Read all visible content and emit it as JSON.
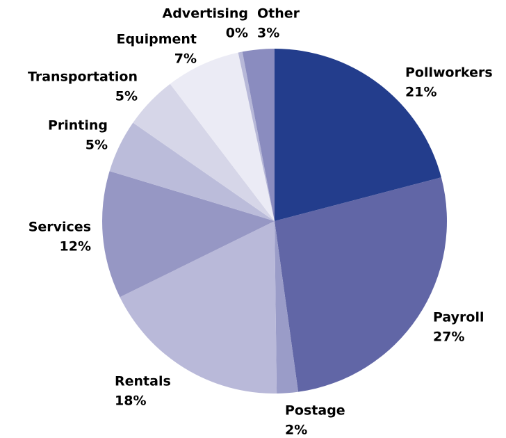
{
  "chart_data": {
    "type": "pie",
    "categories": [
      "Pollworkers",
      "Payroll",
      "Postage",
      "Rentals",
      "Services",
      "Printing",
      "Transportation",
      "Equipment",
      "Advertising",
      "Other"
    ],
    "values": [
      21,
      27,
      2,
      18,
      12,
      5,
      5,
      7,
      0.4,
      3
    ],
    "value_labels": [
      "21%",
      "27%",
      "2%",
      "18%",
      "12%",
      "5%",
      "5%",
      "7%",
      "0%",
      "3%"
    ],
    "colors": [
      "#233d8c",
      "#6166a6",
      "#9a9cc8",
      "#b9b9d9",
      "#9697c4",
      "#bbbcda",
      "#d6d6e8",
      "#ebebf5",
      "#b7b8d8",
      "#8a8cbf"
    ]
  }
}
